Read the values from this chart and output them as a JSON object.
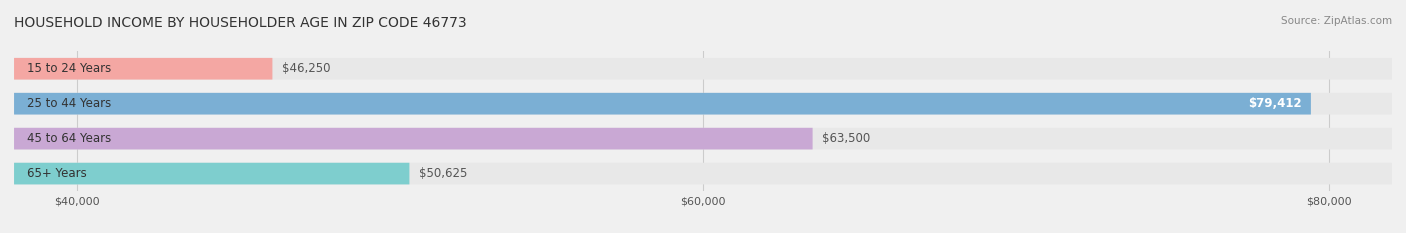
{
  "title": "HOUSEHOLD INCOME BY HOUSEHOLDER AGE IN ZIP CODE 46773",
  "source": "Source: ZipAtlas.com",
  "categories": [
    "15 to 24 Years",
    "25 to 44 Years",
    "45 to 64 Years",
    "65+ Years"
  ],
  "values": [
    46250,
    79412,
    63500,
    50625
  ],
  "bar_colors": [
    "#f4a7a3",
    "#7bafd4",
    "#c9a8d4",
    "#7ecece"
  ],
  "bg_color": "#f0f0f0",
  "bar_bg_color": "#e8e8e8",
  "xmin": 38000,
  "xmax": 82000,
  "xticks": [
    40000,
    60000,
    80000
  ],
  "xtick_labels": [
    "$40,000",
    "$60,000",
    "$80,000"
  ],
  "value_labels": [
    "$46,250",
    "$79,412",
    "$63,500",
    "$50,625"
  ],
  "title_fontsize": 10,
  "label_fontsize": 8.5,
  "tick_fontsize": 8
}
